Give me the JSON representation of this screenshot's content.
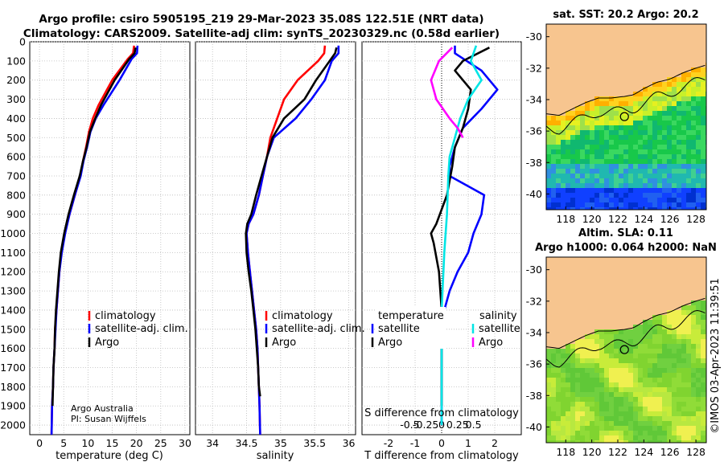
{
  "title": {
    "line1": "Argo profile: csiro 5905195_219 29-Mar-2023 35.08S 122.51E (NRT data)",
    "line2": "Climatology: CARS2009. Satellite-adj clim: synTS_20230329.nc (0.58d earlier)"
  },
  "colors": {
    "climatology": "#ff0000",
    "satellite_clim": "#0000ff",
    "argo": "#000000",
    "satellite_salinity": "#00e5e5",
    "argo_salinity": "#ff00ff",
    "land": "#f7c58f"
  },
  "credit": {
    "line1": "Argo Australia",
    "line2": "PI: Susan Wijffels"
  },
  "watermark": "©IMOS 03-Apr-2023 11:39:51",
  "chart_data": [
    {
      "id": "temperature",
      "type": "line",
      "xlabel": "temperature (deg C)",
      "xlim": [
        -2,
        31
      ],
      "xticks": [
        "0",
        "5",
        "10",
        "15",
        "20",
        "25",
        "30"
      ],
      "xtick_values": [
        0,
        5,
        10,
        15,
        20,
        25,
        30
      ],
      "ylim": [
        0,
        2050
      ],
      "yticks": [
        "0",
        "100",
        "200",
        "300",
        "400",
        "500",
        "600",
        "700",
        "800",
        "900",
        "1000",
        "1100",
        "1200",
        "1300",
        "1400",
        "1500",
        "1600",
        "1700",
        "1800",
        "1900",
        "2000"
      ],
      "legend": [
        "climatology",
        "satellite-adj. clim.",
        "Argo"
      ],
      "series": [
        {
          "name": "climatology",
          "color_key": "climatology",
          "x": [
            19.5,
            19.3,
            18.2,
            15,
            12.2,
            11,
            10.2,
            9.6,
            9,
            8.4,
            7.3,
            6.2,
            5.2,
            4.5,
            4.1,
            3.8,
            3.5,
            3.2,
            3.1,
            2.9,
            2.8,
            2.6,
            2.5
          ],
          "y": [
            20,
            60,
            90,
            200,
            330,
            400,
            470,
            550,
            620,
            700,
            800,
            900,
            1000,
            1100,
            1200,
            1300,
            1400,
            1500,
            1600,
            1700,
            1800,
            1900,
            2050
          ]
        },
        {
          "name": "satellite-adj. clim.",
          "color_key": "satellite_clim",
          "x": [
            20.2,
            20.1,
            19,
            16.5,
            13.2,
            11.6,
            10.5,
            9.8,
            9.1,
            8.5,
            7.3,
            6.2,
            5.3,
            4.6,
            4.1,
            3.8,
            3.5,
            3.3,
            3.1,
            2.9,
            2.8,
            2.6,
            2.5
          ],
          "y": [
            20,
            60,
            90,
            200,
            330,
            400,
            470,
            550,
            620,
            700,
            800,
            900,
            1000,
            1100,
            1200,
            1300,
            1400,
            1500,
            1600,
            1700,
            1800,
            1900,
            2050
          ]
        },
        {
          "name": "Argo",
          "color_key": "argo",
          "x": [
            19.8,
            19.6,
            18.5,
            15.5,
            12.7,
            11.5,
            10.4,
            9.7,
            9,
            8.3,
            7.1,
            6,
            5.1,
            4.4,
            4,
            3.7,
            3.4,
            3.2,
            3.1,
            2.9,
            2.8,
            2.7
          ],
          "y": [
            30,
            60,
            90,
            200,
            330,
            400,
            470,
            550,
            620,
            700,
            800,
            900,
            1000,
            1100,
            1200,
            1300,
            1400,
            1500,
            1600,
            1700,
            1800,
            1900
          ]
        }
      ]
    },
    {
      "id": "salinity",
      "type": "line",
      "xlabel": "salinity",
      "xlim": [
        33.75,
        36.1
      ],
      "xticks": [
        "34",
        "34.5",
        "35",
        "35.5",
        "36"
      ],
      "xtick_values": [
        34,
        34.5,
        35,
        35.5,
        36
      ],
      "ylim": [
        0,
        2050
      ],
      "legend": [
        "climatology",
        "satellite-adj. clim.",
        "Argo"
      ],
      "series": [
        {
          "name": "climatology",
          "color_key": "climatology",
          "x": [
            35.65,
            35.64,
            35.55,
            35.25,
            35.05,
            34.95,
            34.85,
            34.8,
            34.74,
            34.68,
            34.6,
            34.53,
            34.5,
            34.52,
            34.55,
            34.58,
            34.61,
            34.64,
            34.66,
            34.67,
            34.68,
            34.69,
            34.7
          ],
          "y": [
            20,
            60,
            100,
            200,
            300,
            400,
            500,
            600,
            700,
            800,
            900,
            950,
            1000,
            1100,
            1200,
            1300,
            1400,
            1500,
            1600,
            1700,
            1800,
            1900,
            2050
          ]
        },
        {
          "name": "satellite-adj. clim.",
          "color_key": "satellite_clim",
          "x": [
            35.85,
            35.85,
            35.75,
            35.65,
            35.45,
            35.22,
            34.9,
            34.8,
            34.74,
            34.68,
            34.6,
            34.53,
            34.5,
            34.52,
            34.55,
            34.58,
            34.61,
            34.64,
            34.66,
            34.67,
            34.68,
            34.69,
            34.7
          ],
          "y": [
            20,
            60,
            100,
            200,
            300,
            400,
            500,
            600,
            700,
            800,
            900,
            950,
            1000,
            1100,
            1200,
            1300,
            1400,
            1500,
            1600,
            1700,
            1800,
            1900,
            2050
          ]
        },
        {
          "name": "Argo",
          "color_key": "argo",
          "x": [
            35.82,
            35.8,
            35.72,
            35.52,
            35.35,
            35.05,
            34.88,
            34.8,
            34.72,
            34.64,
            34.57,
            34.51,
            34.49,
            34.5,
            34.53,
            34.57,
            34.6,
            34.63,
            34.65,
            34.67,
            34.68,
            34.7
          ],
          "y": [
            30,
            60,
            100,
            200,
            300,
            400,
            500,
            600,
            700,
            800,
            900,
            950,
            1000,
            1100,
            1200,
            1300,
            1400,
            1500,
            1600,
            1700,
            1800,
            1850
          ]
        }
      ]
    },
    {
      "id": "difference",
      "type": "line",
      "xlabel": "T difference from climatology",
      "xlabel_top": "S difference from climatology",
      "xlim": [
        -3,
        3
      ],
      "xticks": [
        "-2",
        "-1",
        "0",
        "1",
        "2"
      ],
      "xtick_values": [
        -2,
        -1,
        0,
        1,
        2
      ],
      "xticks_top": [
        "-0.5",
        "-0.25",
        "0",
        "0.25",
        "0.5"
      ],
      "xtick_top_values": [
        -1.2,
        -0.6,
        0,
        0.6,
        1.2
      ],
      "ylim": [
        0,
        2050
      ],
      "legend_left_title": "temperature",
      "legend_left": [
        "satellite",
        "Argo"
      ],
      "legend_right_title": "salinity",
      "legend_right": [
        "satellite",
        "Argo"
      ],
      "series": [
        {
          "name": "T satellite",
          "color_key": "satellite_clim",
          "x": [
            0.5,
            0.5,
            1.5,
            2.1,
            1.5,
            0.8,
            0.5,
            0.3,
            0.3,
            1.6,
            1.5,
            1.2,
            1,
            0.6,
            0.3,
            0.1,
            0,
            0,
            0
          ],
          "y": [
            20,
            60,
            150,
            250,
            350,
            450,
            550,
            650,
            700,
            800,
            900,
            1000,
            1100,
            1200,
            1300,
            1400,
            1600,
            1800,
            2000
          ]
        },
        {
          "name": "T Argo",
          "color_key": "argo",
          "x": [
            1.8,
            0.8,
            0.5,
            1.1,
            1,
            0.8,
            0.5,
            0.4,
            0.2,
            -0.2,
            -0.4,
            -0.3,
            -0.1,
            0,
            0,
            0,
            0
          ],
          "y": [
            30,
            100,
            150,
            250,
            350,
            450,
            550,
            650,
            800,
            950,
            1000,
            1050,
            1200,
            1400,
            1600,
            1800,
            1900
          ]
        },
        {
          "name": "S satellite",
          "color_key": "satellite_salinity",
          "x": [
            1.3,
            1.1,
            1.5,
            1,
            0.7,
            0.5,
            0.3,
            0.25,
            0.2,
            0.1,
            0,
            0,
            0
          ],
          "y": [
            20,
            100,
            200,
            300,
            400,
            500,
            600,
            700,
            900,
            1100,
            1400,
            1700,
            2000
          ]
        },
        {
          "name": "S Argo",
          "color_key": "argo_salinity",
          "x": [
            0.4,
            -0.1,
            -0.4,
            -0.2,
            0.3,
            0.6,
            0.8
          ],
          "y": [
            30,
            100,
            200,
            300,
            400,
            450,
            500
          ]
        }
      ]
    }
  ],
  "map_sst": {
    "title": "sat. SST: 20.2 Argo: 20.2",
    "xticks": [
      "118",
      "120",
      "122",
      "124",
      "126",
      "128"
    ],
    "xtick_values": [
      118,
      120,
      122,
      124,
      126,
      128
    ],
    "yticks": [
      "-30",
      "-32",
      "-34",
      "-36",
      "-38",
      "-40"
    ],
    "ytick_values": [
      -30,
      -32,
      -34,
      -36,
      -38,
      -40
    ],
    "lon_range": [
      116.5,
      128.8
    ],
    "lat_range": [
      -41,
      -29.2
    ],
    "marker": {
      "lon": 122.51,
      "lat": -35.08
    }
  },
  "map_sla": {
    "title_line1": "Altim. SLA: 0.11",
    "title_line2": "Argo h1000: 0.064 h2000: NaN",
    "xticks": [
      "118",
      "120",
      "122",
      "124",
      "126",
      "128"
    ],
    "xtick_values": [
      118,
      120,
      122,
      124,
      126,
      128
    ],
    "yticks": [
      "-30",
      "-32",
      "-34",
      "-36",
      "-38",
      "-40"
    ],
    "ytick_values": [
      -30,
      -32,
      -34,
      -36,
      -38,
      -40
    ],
    "lon_range": [
      116.5,
      128.8
    ],
    "lat_range": [
      -41,
      -29.2
    ],
    "marker": {
      "lon": 122.51,
      "lat": -35.08
    }
  }
}
